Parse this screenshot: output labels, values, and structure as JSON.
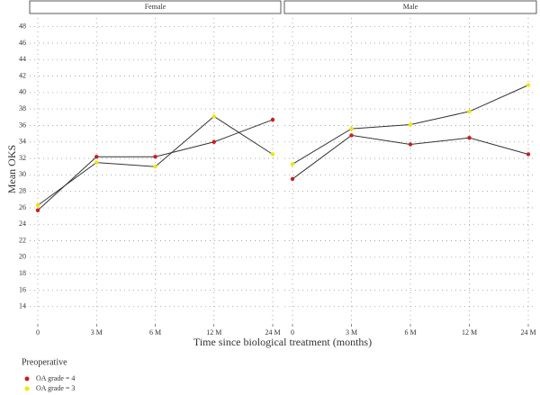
{
  "chart_data": [
    {
      "type": "line",
      "title": "Female",
      "x_label": "Time since biological treatment (months)",
      "y_label": "Mean OKS",
      "legend_title": "Preoperative",
      "categories": [
        "0",
        "3 M",
        "6 M",
        "12 M",
        "24 M"
      ],
      "series": [
        {
          "name": "OA grade = 4",
          "color": "#cc1f1f",
          "values": [
            25.7,
            32.2,
            32.2,
            34.0,
            36.7
          ]
        },
        {
          "name": "OA grade = 3",
          "color": "#f2e600",
          "values": [
            26.3,
            31.5,
            31.0,
            37.1,
            32.5
          ]
        }
      ],
      "line_color": "#333333",
      "ylim": [
        11.9,
        49.6
      ],
      "yticks": [
        14,
        16,
        18,
        20,
        22,
        24,
        26,
        28,
        30,
        32,
        34,
        36,
        38,
        40,
        42,
        44,
        46,
        48
      ],
      "grid": true
    },
    {
      "type": "line",
      "title": "Male",
      "categories": [
        "0",
        "3 M",
        "6 M",
        "12 M",
        "24 M"
      ],
      "series": [
        {
          "name": "OA grade = 4",
          "color": "#cc1f1f",
          "values": [
            29.5,
            34.8,
            33.7,
            34.5,
            32.5
          ]
        },
        {
          "name": "OA grade = 3",
          "color": "#f2e600",
          "values": [
            31.3,
            35.6,
            36.1,
            37.7,
            40.9
          ]
        }
      ],
      "line_color": "#333333",
      "ylim": [
        11.9,
        49.6
      ],
      "yticks": [
        14,
        16,
        18,
        20,
        22,
        24,
        26,
        28,
        30,
        32,
        34,
        36,
        38,
        40,
        42,
        44,
        46,
        48
      ],
      "grid": true
    }
  ]
}
